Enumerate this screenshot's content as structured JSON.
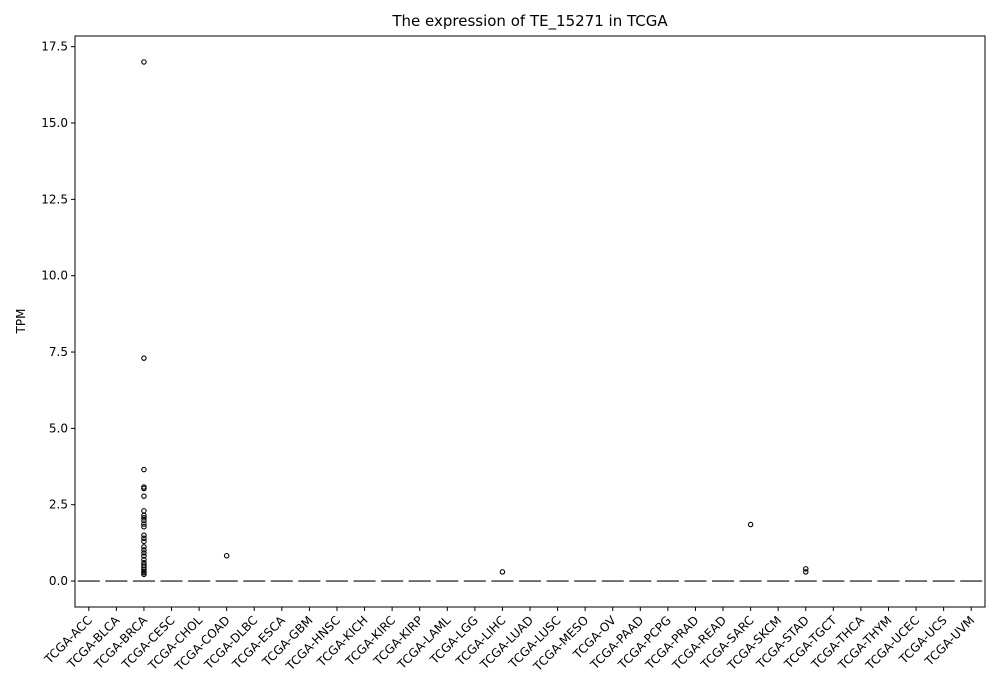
{
  "chart_data": {
    "type": "box",
    "title": "The expression of TE_15271 in TCGA",
    "xlabel": "",
    "ylabel": "TPM",
    "ylim": [
      -0.85,
      17.85
    ],
    "yticks": [
      0.0,
      2.5,
      5.0,
      7.5,
      10.0,
      12.5,
      15.0,
      17.5
    ],
    "ytick_labels": [
      "0.0",
      "2.5",
      "5.0",
      "7.5",
      "10.0",
      "12.5",
      "15.0",
      "17.5"
    ],
    "grid": false,
    "legend": "none",
    "colors": {
      "box_line": "#555555",
      "outlier": "#000000",
      "axis": "#000000"
    },
    "categories": [
      "TCGA-ACC",
      "TCGA-BLCA",
      "TCGA-BRCA",
      "TCGA-CESC",
      "TCGA-CHOL",
      "TCGA-COAD",
      "TCGA-DLBC",
      "TCGA-ESCA",
      "TCGA-GBM",
      "TCGA-HNSC",
      "TCGA-KICH",
      "TCGA-KIRC",
      "TCGA-KIRP",
      "TCGA-LAML",
      "TCGA-LGG",
      "TCGA-LIHC",
      "TCGA-LUAD",
      "TCGA-LUSC",
      "TCGA-MESO",
      "TCGA-OV",
      "TCGA-PAAD",
      "TCGA-PCPG",
      "TCGA-PRAD",
      "TCGA-READ",
      "TCGA-SARC",
      "TCGA-SKCM",
      "TCGA-STAD",
      "TCGA-TGCT",
      "TCGA-THCA",
      "TCGA-THYM",
      "TCGA-UCEC",
      "TCGA-UCS",
      "TCGA-UVM"
    ],
    "median": 0.0,
    "outliers": {
      "TCGA-BRCA": [
        17.0,
        7.3,
        3.65,
        3.08,
        3.03,
        2.78,
        2.3,
        2.15,
        2.07,
        1.98,
        1.87,
        1.78,
        1.5,
        1.4,
        1.3,
        1.12,
        1.02,
        0.92,
        0.82,
        0.7,
        0.6,
        0.52,
        0.45,
        0.38,
        0.32,
        0.27,
        0.22
      ],
      "TCGA-COAD": [
        0.83
      ],
      "TCGA-LIHC": [
        0.3
      ],
      "TCGA-SARC": [
        1.85
      ],
      "TCGA-STAD": [
        0.4,
        0.3
      ]
    }
  }
}
